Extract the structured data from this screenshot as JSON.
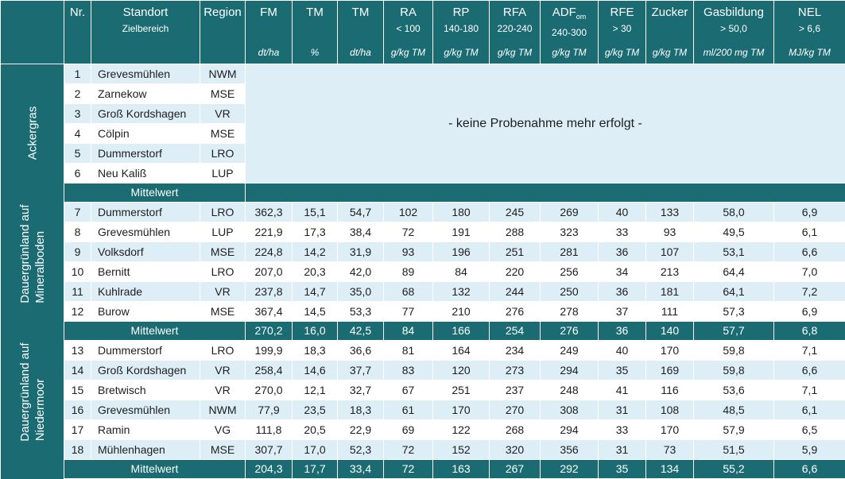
{
  "header": {
    "nr": "Nr.",
    "standort": "Standort",
    "zielbereich": "Zielbereich",
    "region": "Region",
    "columns": [
      {
        "title": "FM",
        "sub": "",
        "range": "",
        "unit": "dt/ha"
      },
      {
        "title": "TM",
        "sub": "",
        "range": "",
        "unit": "%"
      },
      {
        "title": "TM",
        "sub": "",
        "range": "",
        "unit": "dt/ha"
      },
      {
        "title": "RA",
        "sub": "",
        "range": "< 100",
        "unit": "g/kg TM"
      },
      {
        "title": "RP",
        "sub": "",
        "range": "140-180",
        "unit": "g/kg TM"
      },
      {
        "title": "RFA",
        "sub": "",
        "range": "220-240",
        "unit": "g/kg TM"
      },
      {
        "title": "ADF",
        "sub": "om",
        "range": "240-300",
        "unit": "g/kg TM"
      },
      {
        "title": "RFE",
        "sub": "",
        "range": "> 30",
        "unit": "g/kg TM"
      },
      {
        "title": "Zucker",
        "sub": "",
        "range": "",
        "unit": "g/kg TM"
      },
      {
        "title": "Gasbildung",
        "sub": "",
        "range": "> 50,0",
        "unit": "ml/200 mg TM"
      },
      {
        "title": "NEL",
        "sub": "",
        "range": "> 6,6",
        "unit": "MJ/kg TM"
      }
    ]
  },
  "sections": [
    {
      "label": "Ackergras",
      "note": "- keine Probenahme mehr erfolgt -",
      "rows": [
        {
          "nr": "1",
          "name": "Grevesmühlen",
          "region": "NWM"
        },
        {
          "nr": "2",
          "name": "Zarnekow",
          "region": "MSE"
        },
        {
          "nr": "3",
          "name": "Groß Kordshagen",
          "region": "VR"
        },
        {
          "nr": "4",
          "name": "Cölpin",
          "region": "MSE"
        },
        {
          "nr": "5",
          "name": "Dummerstorf",
          "region": "LRO"
        },
        {
          "nr": "6",
          "name": "Neu Kaliß",
          "region": "LUP"
        }
      ],
      "mittelwert": {
        "label": "Mittelwert",
        "values": []
      }
    },
    {
      "label_line1": "Dauergrünland auf",
      "label_line2": "Mineralboden",
      "rows": [
        {
          "nr": "7",
          "name": "Dummerstorf",
          "region": "LRO",
          "values": [
            "362,3",
            "15,1",
            "54,7",
            "102",
            "180",
            "245",
            "269",
            "40",
            "133",
            "58,0",
            "6,9"
          ]
        },
        {
          "nr": "8",
          "name": "Grevesmühlen",
          "region": "LUP",
          "values": [
            "221,9",
            "17,3",
            "38,4",
            "72",
            "191",
            "288",
            "323",
            "33",
            "93",
            "49,5",
            "6,1"
          ]
        },
        {
          "nr": "9",
          "name": "Volksdorf",
          "region": "MSE",
          "values": [
            "224,8",
            "14,2",
            "31,9",
            "93",
            "196",
            "251",
            "281",
            "36",
            "107",
            "53,1",
            "6,6"
          ]
        },
        {
          "nr": "10",
          "name": "Bernitt",
          "region": "LRO",
          "values": [
            "207,0",
            "20,3",
            "42,0",
            "89",
            "84",
            "220",
            "256",
            "34",
            "213",
            "64,4",
            "7,0"
          ]
        },
        {
          "nr": "11",
          "name": "Kuhlrade",
          "region": "VR",
          "values": [
            "237,8",
            "14,7",
            "35,0",
            "68",
            "132",
            "244",
            "250",
            "36",
            "181",
            "64,1",
            "7,2"
          ]
        },
        {
          "nr": "12",
          "name": "Burow",
          "region": "MSE",
          "values": [
            "367,4",
            "14,5",
            "53,3",
            "77",
            "210",
            "276",
            "278",
            "37",
            "111",
            "57,3",
            "6,9"
          ]
        }
      ],
      "mittelwert": {
        "label": "Mittelwert",
        "values": [
          "270,2",
          "16,0",
          "42,5",
          "84",
          "166",
          "254",
          "276",
          "36",
          "140",
          "57,7",
          "6,8"
        ]
      }
    },
    {
      "label_line1": "Dauergrünland auf",
      "label_line2": "Niedermoor",
      "rows": [
        {
          "nr": "13",
          "name": "Dummerstorf",
          "region": "LRO",
          "values": [
            "199,9",
            "18,3",
            "36,6",
            "81",
            "164",
            "234",
            "249",
            "40",
            "170",
            "59,8",
            "7,1"
          ]
        },
        {
          "nr": "14",
          "name": "Groß Kordshagen",
          "region": "VR",
          "values": [
            "258,4",
            "14,6",
            "37,7",
            "83",
            "120",
            "273",
            "294",
            "35",
            "169",
            "59,8",
            "6,6"
          ]
        },
        {
          "nr": "15",
          "name": "Bretwisch",
          "region": "VR",
          "values": [
            "270,0",
            "12,1",
            "32,7",
            "67",
            "251",
            "237",
            "248",
            "41",
            "116",
            "53,6",
            "7,1"
          ]
        },
        {
          "nr": "16",
          "name": "Grevesmühlen",
          "region": "NWM",
          "values": [
            "77,9",
            "23,5",
            "18,3",
            "61",
            "170",
            "270",
            "308",
            "31",
            "108",
            "48,5",
            "6,1"
          ]
        },
        {
          "nr": "17",
          "name": "Ramin",
          "region": "VG",
          "values": [
            "111,8",
            "20,5",
            "22,9",
            "69",
            "122",
            "268",
            "294",
            "33",
            "170",
            "57,9",
            "6,5"
          ]
        },
        {
          "nr": "18",
          "name": "Mühlenhagen",
          "region": "MSE",
          "values": [
            "307,7",
            "17,0",
            "52,3",
            "72",
            "152",
            "320",
            "356",
            "31",
            "73",
            "51,5",
            "5,9"
          ]
        }
      ],
      "mittelwert": {
        "label": "Mittelwert",
        "values": [
          "204,3",
          "17,7",
          "33,4",
          "72",
          "163",
          "267",
          "292",
          "35",
          "134",
          "55,2",
          "6,6"
        ]
      }
    }
  ],
  "colors": {
    "header_bg": "#1b6b72",
    "alt_row": "#ddeef7",
    "text": "#1e1e1e"
  }
}
